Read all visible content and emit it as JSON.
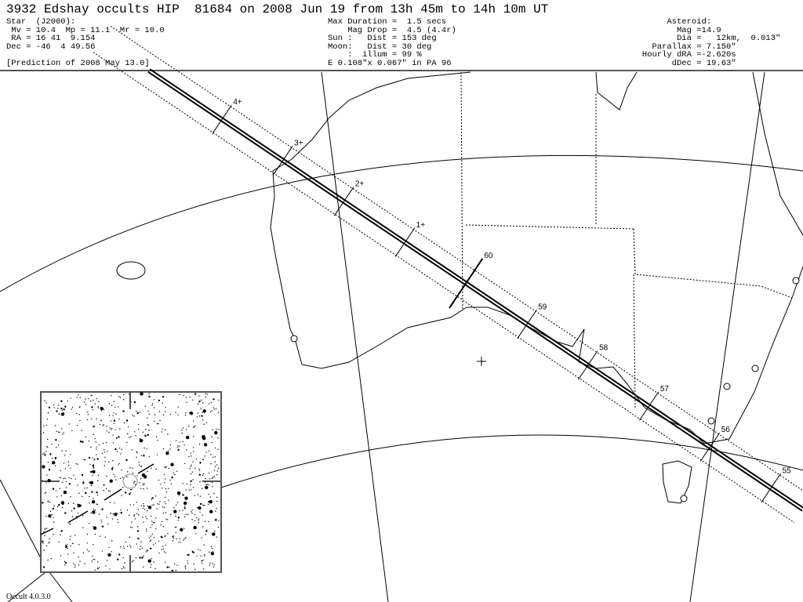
{
  "header": {
    "title": "3932 Edshay occults HIP  81684 on 2008 Jun 19 from 13h 45m to 14h 10m UT",
    "star": [
      "Star  (J2000):",
      " Mv = 10.4  Mp = 11.1  Mr = 10.0",
      " RA = 16 41  9.154",
      "Dec = -46  4 49.56",
      "",
      "[Prediction of 2008 May 13.0]"
    ],
    "event": [
      "Max Duration =  1.5 secs",
      "    Mag Drop =  4.5 (4.4r)",
      "Sun :   Dist = 153 deg",
      "Moon:   Dist = 30 deg",
      "    :  illum = 99 %",
      "E 0.108\"x 0.067\" in PA 96"
    ],
    "asteroid": [
      "        Asteroid:",
      "          Mag =14.9",
      "          Dia =   12km,  0.013\"",
      "     Parallax = 7.150\"",
      "   Hourly dRA =-2.620s",
      "         dDec = 19.63\""
    ]
  },
  "track": {
    "time_labels": [
      "4+",
      "3+",
      "2+",
      "1+",
      "60",
      "59",
      "58",
      "57",
      "56",
      "55"
    ]
  },
  "footer": {
    "version": "Occult 4.0.3.0"
  }
}
